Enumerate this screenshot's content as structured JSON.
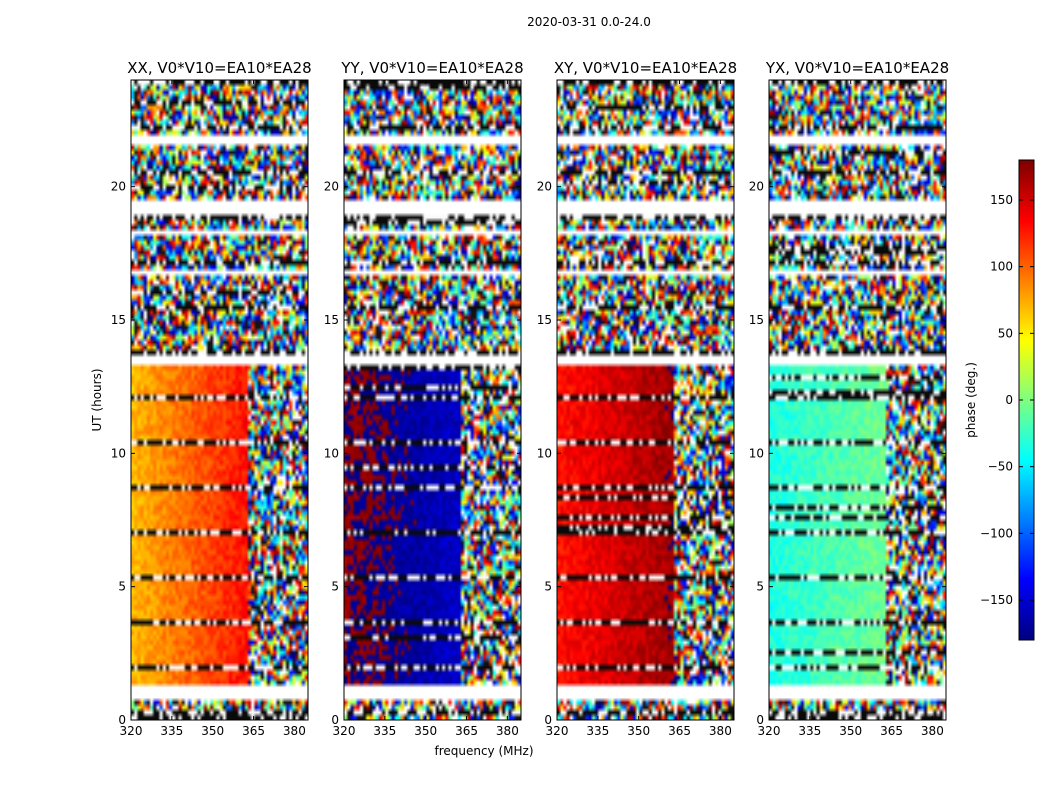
{
  "chart_data": {
    "type": "heatmap",
    "title": "2020-03-31 0.0-24.0",
    "xlabel": "frequency (MHz)",
    "ylabel": "UT (hours)",
    "xlim": [
      320,
      385
    ],
    "ylim": [
      0,
      24
    ],
    "xticks": [
      320,
      335,
      350,
      365,
      380
    ],
    "yticks": [
      0,
      5,
      10,
      15,
      20
    ],
    "flagged_hours": [
      [
        0.8,
        1.3
      ],
      [
        19.0,
        19.5
      ],
      [
        21.6,
        22.0
      ],
      [
        13.4,
        13.6
      ],
      [
        16.6,
        16.8
      ],
      [
        18.1,
        18.3
      ]
    ],
    "coherent_band_mhz": [
      320,
      362
    ],
    "panels": [
      {
        "title": "XX, V0*V10=EA10*EA28",
        "phase_deg": 100,
        "spread_deg": 60,
        "band_edge_mhz": 362
      },
      {
        "title": "YY, V0*V10=EA10*EA28",
        "phase_deg": -170,
        "spread_deg": 30,
        "band_edge_mhz": 362
      },
      {
        "title": "XY, V0*V10=EA10*EA28",
        "phase_deg": 150,
        "spread_deg": 40,
        "band_edge_mhz": 362
      },
      {
        "title": "YX, V0*V10=EA10*EA28",
        "phase_deg": -20,
        "spread_deg": 30,
        "band_edge_mhz": 362
      }
    ],
    "colorbar": {
      "label": "phase (deg.)",
      "range": [
        -180,
        180
      ],
      "ticks": [
        150,
        100,
        50,
        0,
        -50,
        -100,
        -150
      ],
      "tick_labels": [
        "150",
        "100",
        "50",
        "0",
        "−50",
        "−100",
        "−150"
      ],
      "colormap": "jet"
    }
  }
}
